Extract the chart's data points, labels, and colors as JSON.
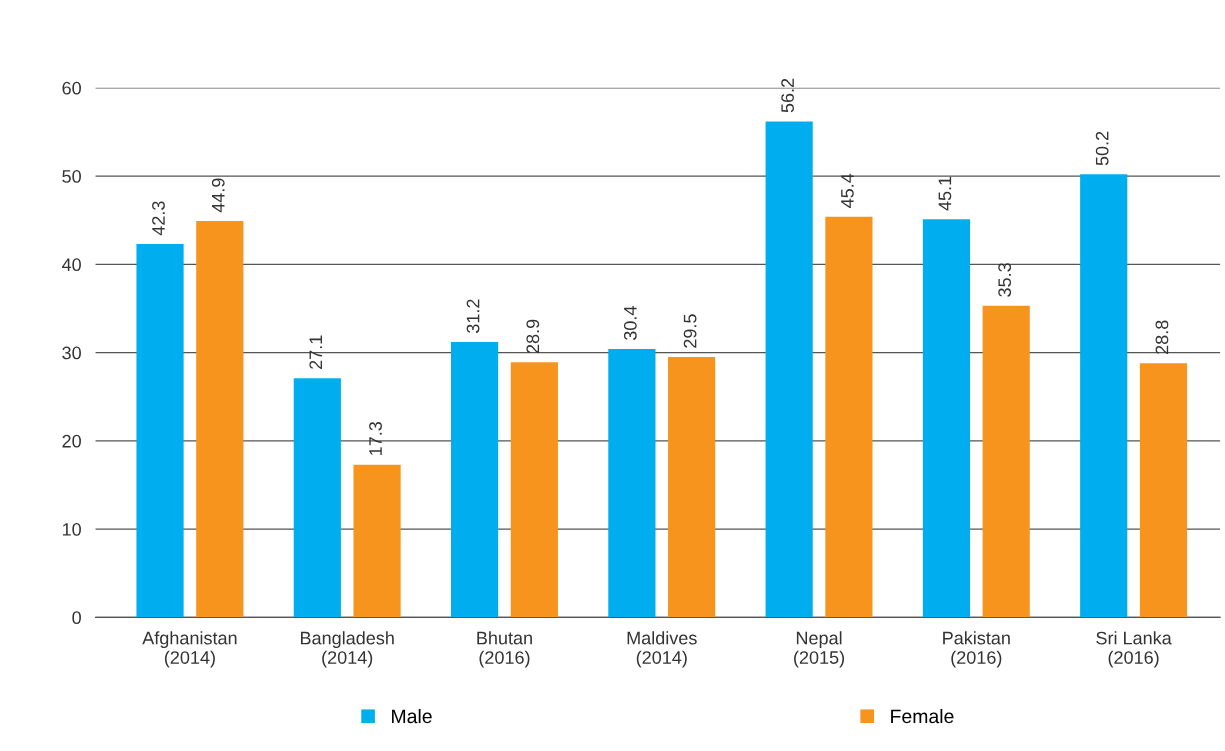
{
  "chart_data": {
    "type": "bar",
    "categories": [
      "Afghanistan\n(2014)",
      "Bangladesh\n(2014)",
      "Bhutan\n(2016)",
      "Maldives\n(2014)",
      "Nepal\n(2015)",
      "Pakistan\n(2016)",
      "Sri Lanka\n(2016)"
    ],
    "series": [
      {
        "name": "Male",
        "color": "#00aeef",
        "values": [
          42.3,
          27.1,
          31.2,
          30.4,
          56.2,
          45.1,
          50.2
        ]
      },
      {
        "name": "Female",
        "color": "#f7941d",
        "values": [
          44.9,
          17.3,
          28.9,
          29.5,
          45.4,
          35.3,
          28.8
        ]
      }
    ],
    "ylim": [
      0,
      60
    ],
    "yticks": [
      0,
      10,
      20,
      30,
      40,
      50,
      60
    ],
    "grid": "y",
    "legend": "bottom",
    "data_labels": true
  }
}
